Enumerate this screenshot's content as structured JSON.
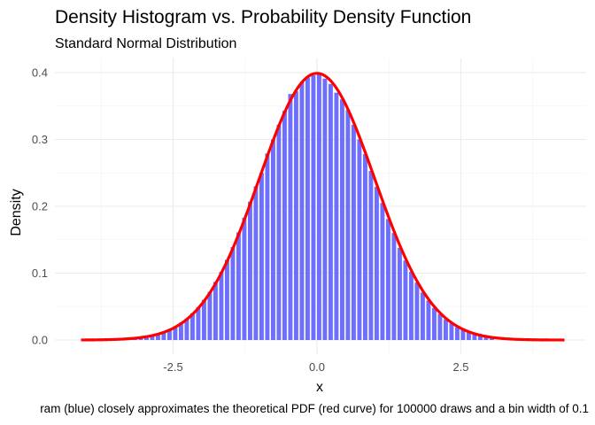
{
  "chart_data": {
    "type": "bar",
    "title": "Density Histogram vs. Probability Density Function",
    "subtitle": "Standard Normal Distribution",
    "xlabel": "x",
    "ylabel": "Density",
    "caption": "ram (blue) closely approximates the theoretical PDF (red curve) for 100000 draws and a bin width of 0.1",
    "xlim": [
      -4.45,
      4.75
    ],
    "ylim": [
      0,
      0.42
    ],
    "x_ticks": [
      {
        "v": -2.5,
        "label": "-2.5"
      },
      {
        "v": 0,
        "label": "0.0"
      },
      {
        "v": 2.5,
        "label": "2.5"
      }
    ],
    "x_minor": [
      -3.75,
      -1.25,
      1.25,
      3.75
    ],
    "y_ticks": [
      {
        "v": 0,
        "label": "0.0"
      },
      {
        "v": 0.1,
        "label": "0.1"
      },
      {
        "v": 0.2,
        "label": "0.2"
      },
      {
        "v": 0.3,
        "label": "0.3"
      },
      {
        "v": 0.4,
        "label": "0.4"
      }
    ],
    "y_minor": [
      0.05,
      0.15,
      0.25,
      0.35
    ],
    "grid": true,
    "histogram": {
      "name": "Histogram",
      "color": "#6666ff",
      "bin_width": 0.1,
      "bin_start": -3.3,
      "values": [
        0.002,
        0.003,
        0.004,
        0.005,
        0.007,
        0.009,
        0.012,
        0.016,
        0.02,
        0.026,
        0.032,
        0.04,
        0.049,
        0.06,
        0.072,
        0.087,
        0.102,
        0.12,
        0.139,
        0.161,
        0.183,
        0.207,
        0.23,
        0.25,
        0.279,
        0.3,
        0.322,
        0.343,
        0.368,
        0.372,
        0.386,
        0.393,
        0.396,
        0.397,
        0.391,
        0.383,
        0.37,
        0.36,
        0.344,
        0.322,
        0.3,
        0.278,
        0.253,
        0.229,
        0.205,
        0.181,
        0.16,
        0.138,
        0.119,
        0.102,
        0.086,
        0.071,
        0.059,
        0.048,
        0.039,
        0.031,
        0.025,
        0.019,
        0.015,
        0.011,
        0.009,
        0.007,
        0.005,
        0.003
      ]
    },
    "pdf_curve": {
      "name": "Normal PDF",
      "color": "#ff0000",
      "mean": 0,
      "sd": 1,
      "x_range": [
        -4.1,
        4.3
      ]
    }
  }
}
